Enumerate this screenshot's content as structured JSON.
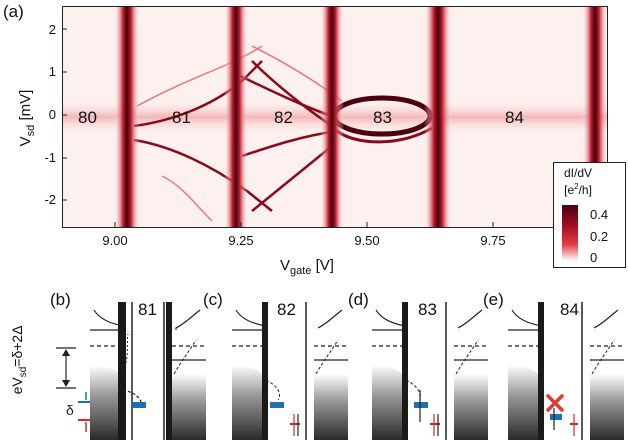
{
  "panel_a": {
    "label": "(a)",
    "y_axis": {
      "label_main": "V",
      "label_sub": "sd",
      "label_unit": " [mV]",
      "ticks": [
        "2",
        "1",
        "0",
        "-1",
        "-2"
      ]
    },
    "x_axis": {
      "label_main": "V",
      "label_sub": "gate",
      "label_unit": " [V]",
      "ticks": [
        "9.00",
        "9.25",
        "9.50",
        "9.75"
      ]
    },
    "region_numbers": [
      "80",
      "81",
      "82",
      "83",
      "84"
    ],
    "colorbar": {
      "title_line1": "dI/dV",
      "title_line2": "[e",
      "title_sup": "2",
      "title_end": "/h]",
      "ticks": [
        "0.4",
        "0.2",
        "0"
      ]
    }
  },
  "lower_panels": [
    {
      "label": "(b)",
      "number": "81"
    },
    {
      "label": "(c)",
      "number": "82"
    },
    {
      "label": "(d)",
      "number": "83"
    },
    {
      "label": "(e)",
      "number": "84"
    }
  ],
  "bias_label": {
    "main": "eV",
    "sub": "sd",
    "rest": "=δ+2Δ"
  },
  "delta_symbol": "δ",
  "colors": {
    "heat_low": "#ffffff",
    "heat_mid": "#e0303a",
    "heat_high": "#4a0010",
    "spin_blue": "#1f6fb5",
    "spin_red": "#d8262c",
    "cross_red": "#e23b2f"
  },
  "chart_data": {
    "type": "heatmap",
    "xlabel": "V_gate [V]",
    "ylabel": "V_sd [mV]",
    "x_ticks": [
      9.0,
      9.25,
      9.5,
      9.75
    ],
    "y_ticks": [
      2,
      1,
      0,
      -1,
      -2
    ],
    "colorbar_ticks": [
      0,
      0.2,
      0.4
    ],
    "colorbar_label": "dI/dV [e^2/h]",
    "region_labels": [
      "80",
      "81",
      "82",
      "83",
      "84"
    ]
  }
}
